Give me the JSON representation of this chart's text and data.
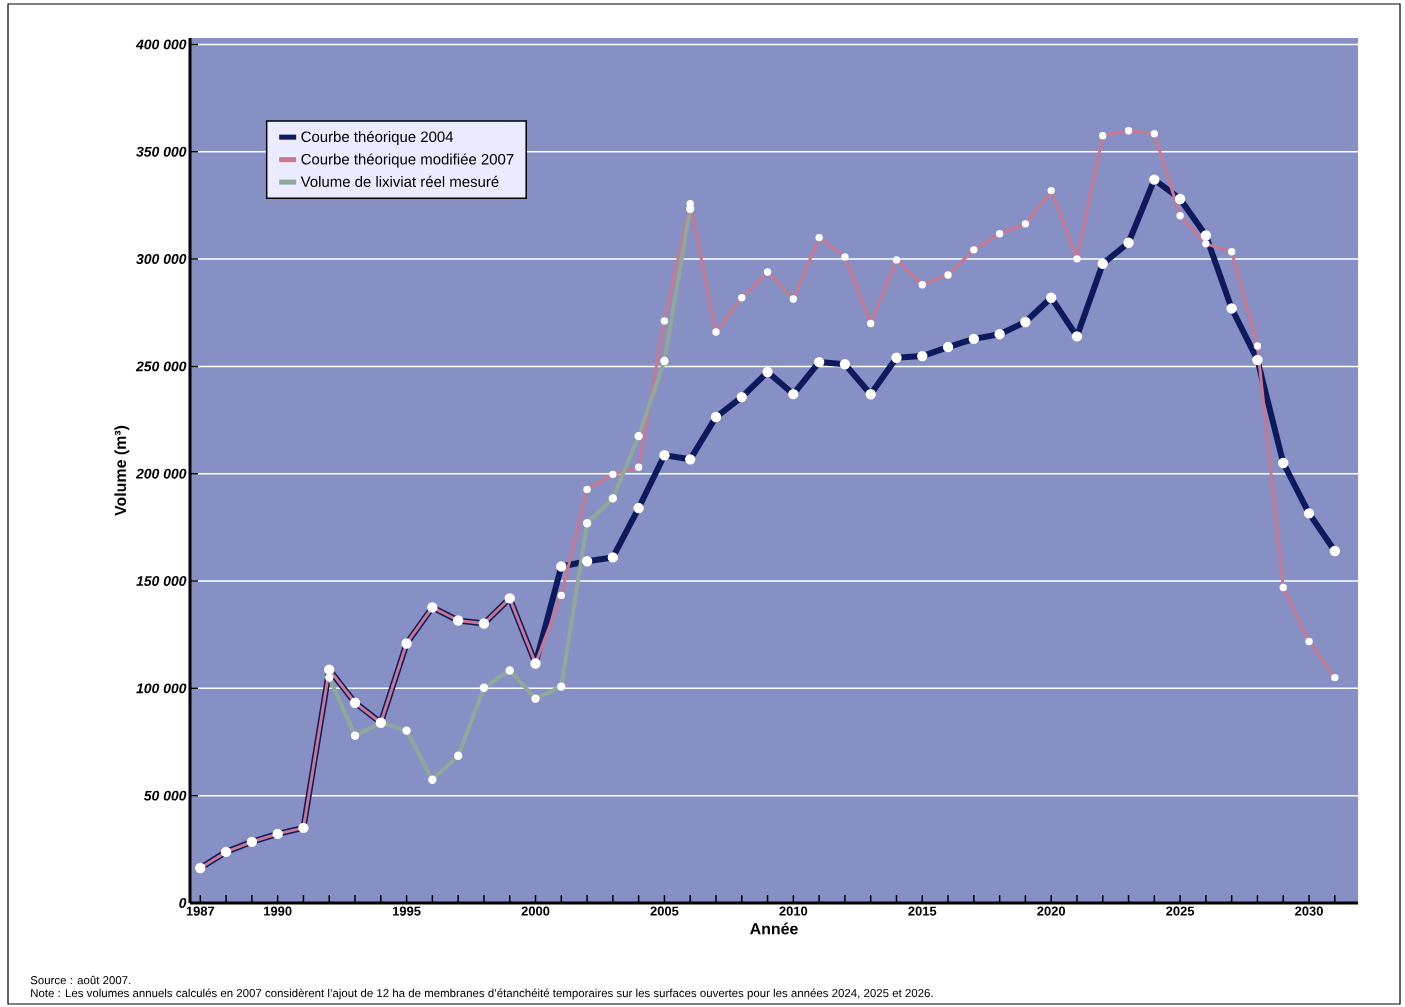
{
  "chart_data": {
    "type": "line",
    "xlabel": "Année",
    "ylabel": "Volume (m³)",
    "x": [
      1987,
      1988,
      1989,
      1990,
      1991,
      1992,
      1993,
      1994,
      1995,
      1996,
      1997,
      1998,
      1999,
      2000,
      2001,
      2002,
      2003,
      2004,
      2005,
      2006,
      2007,
      2008,
      2009,
      2010,
      2011,
      2012,
      2013,
      2014,
      2015,
      2016,
      2017,
      2018,
      2019,
      2020,
      2021,
      2022,
      2023,
      2024,
      2025,
      2026,
      2027,
      2028,
      2029,
      2030,
      2031
    ],
    "series": [
      {
        "name": "Courbe théorique 2004",
        "color": "#0d1a5e",
        "values": [
          16300,
          23800,
          28500,
          32200,
          35000,
          108700,
          93300,
          84000,
          120900,
          137700,
          131600,
          130200,
          141900,
          111600,
          156800,
          159200,
          161000,
          184000,
          208600,
          206700,
          226400,
          235700,
          247400,
          237100,
          252000,
          251000,
          237000,
          254000,
          254800,
          259000,
          262800,
          265000,
          270700,
          282000,
          264000,
          297800,
          307600,
          337000,
          328000,
          311000,
          277000,
          253000,
          205000,
          181500,
          164000
        ]
      },
      {
        "name": "Courbe théorique modifiée 2007",
        "color": "#c87890",
        "values": [
          16300,
          23800,
          28500,
          32200,
          35000,
          108700,
          93300,
          84000,
          120900,
          137700,
          131600,
          130200,
          141900,
          111600,
          143300,
          192700,
          199700,
          203000,
          271200,
          325800,
          266000,
          282000,
          294000,
          281400,
          310000,
          301000,
          270000,
          299600,
          288000,
          292600,
          304300,
          311800,
          316400,
          331900,
          300100,
          357500,
          359800,
          358400,
          320200,
          307100,
          303400,
          259500,
          147000,
          121800,
          105000
        ]
      },
      {
        "name": "Volume de lixiviat réel mesuré",
        "color": "#8fa89a",
        "values": [
          null,
          null,
          null,
          null,
          null,
          105000,
          77900,
          84000,
          80300,
          57400,
          68600,
          100300,
          108300,
          95200,
          100800,
          176900,
          188500,
          217500,
          252500,
          323400,
          null,
          null,
          null,
          null,
          null,
          null,
          null,
          null,
          null,
          null,
          null,
          null,
          null,
          null,
          null,
          null,
          null,
          null,
          null,
          null,
          null,
          null,
          null,
          null,
          null
        ]
      }
    ],
    "xlim": [
      1986.6,
      2031.9
    ],
    "ylim": [
      0,
      403000
    ],
    "xticks": [
      1987,
      {
        "value": 1988,
        "label": null
      },
      {
        "value": 1989,
        "label": null
      },
      1990,
      {
        "value": 1991,
        "label": null
      },
      {
        "value": 1992,
        "label": null
      },
      {
        "value": 1993,
        "label": null
      },
      {
        "value": 1994,
        "label": null
      },
      1995,
      {
        "value": 1996,
        "label": null
      },
      {
        "value": 1997,
        "label": null
      },
      {
        "value": 1998,
        "label": null
      },
      {
        "value": 1999,
        "label": null
      },
      2000,
      {
        "value": 2001,
        "label": null
      },
      {
        "value": 2002,
        "label": null
      },
      {
        "value": 2003,
        "label": null
      },
      {
        "value": 2004,
        "label": null
      },
      2005,
      {
        "value": 2006,
        "label": null
      },
      {
        "value": 2007,
        "label": null
      },
      {
        "value": 2008,
        "label": null
      },
      {
        "value": 2009,
        "label": null
      },
      2010,
      {
        "value": 2011,
        "label": null
      },
      {
        "value": 2012,
        "label": null
      },
      {
        "value": 2013,
        "label": null
      },
      {
        "value": 2014,
        "label": null
      },
      2015,
      {
        "value": 2016,
        "label": null
      },
      {
        "value": 2017,
        "label": null
      },
      {
        "value": 2018,
        "label": null
      },
      {
        "value": 2019,
        "label": null
      },
      2020,
      {
        "value": 2021,
        "label": null
      },
      {
        "value": 2022,
        "label": null
      },
      {
        "value": 2023,
        "label": null
      },
      {
        "value": 2024,
        "label": null
      },
      2025,
      {
        "value": 2026,
        "label": null
      },
      {
        "value": 2027,
        "label": null
      },
      {
        "value": 2028,
        "label": null
      },
      {
        "value": 2029,
        "label": null
      },
      2030,
      {
        "value": 2031,
        "label": null
      }
    ],
    "yticks": [
      0,
      {
        "value": 50000,
        "label": "50 000"
      },
      {
        "value": 100000,
        "label": "100 000"
      },
      {
        "value": 150000,
        "label": "150 000"
      },
      {
        "value": 200000,
        "label": "200 000"
      },
      {
        "value": 250000,
        "label": "250 000"
      },
      {
        "value": 300000,
        "label": "300 000"
      },
      {
        "value": 350000,
        "label": "350 000"
      },
      {
        "value": 400000,
        "label": "400 000"
      }
    ],
    "grid": "y",
    "legend": "top left",
    "marker": "circle",
    "line_style": "solid",
    "annotations": [
      "Source : août 2007.",
      "Note : Les volumes annuels calculés en 2007 considèrent l’ajout de 12 ha de membranes d’étanchéité temporaires sur les surfaces ouvertes pour les années 2024, 2025 et 2026."
    ]
  }
}
